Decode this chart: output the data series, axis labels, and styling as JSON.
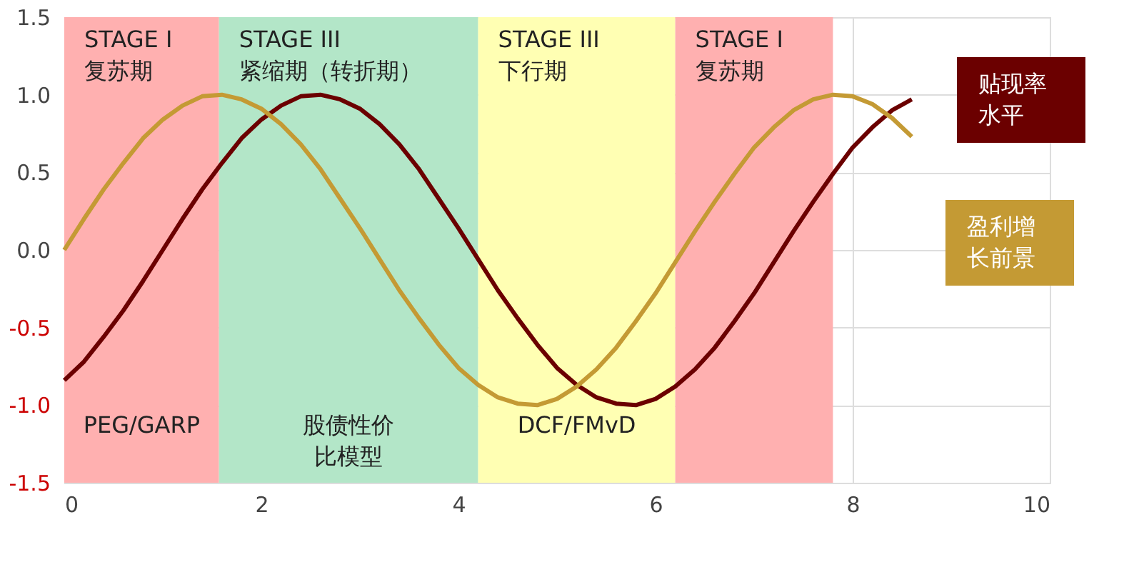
{
  "chart_data": {
    "type": "line",
    "x": [
      0,
      0.2,
      0.4,
      0.6,
      0.8,
      1.0,
      1.2,
      1.4,
      1.6,
      1.8,
      2.0,
      2.2,
      2.4,
      2.6,
      2.8,
      3.0,
      3.2,
      3.4,
      3.6,
      3.8,
      4.0,
      4.2,
      4.4,
      4.6,
      4.8,
      5.0,
      5.2,
      5.4,
      5.6,
      5.8,
      6.0,
      6.2,
      6.4,
      6.6,
      6.8,
      7.0,
      7.2,
      7.4,
      7.6,
      7.8,
      8.0,
      8.2,
      8.4,
      8.6
    ],
    "series": [
      {
        "name": "贴现率水平",
        "color": "#6b0000",
        "values": [
          -0.84,
          -0.72,
          -0.56,
          -0.39,
          -0.2,
          0,
          0.2,
          0.39,
          0.56,
          0.72,
          0.84,
          0.93,
          0.99,
          1.0,
          0.97,
          0.91,
          0.81,
          0.68,
          0.52,
          0.33,
          0.14,
          -0.06,
          -0.26,
          -0.44,
          -0.61,
          -0.76,
          -0.87,
          -0.95,
          -0.99,
          -1.0,
          -0.96,
          -0.88,
          -0.77,
          -0.63,
          -0.46,
          -0.28,
          -0.08,
          0.12,
          0.31,
          0.49,
          0.66,
          0.79,
          0.9,
          0.97
        ]
      },
      {
        "name": "盈利增长前景",
        "color": "#c49a34",
        "values": [
          0,
          0.2,
          0.39,
          0.56,
          0.72,
          0.84,
          0.93,
          0.99,
          1.0,
          0.97,
          0.91,
          0.81,
          0.68,
          0.52,
          0.33,
          0.14,
          -0.06,
          -0.26,
          -0.44,
          -0.61,
          -0.76,
          -0.87,
          -0.95,
          -0.99,
          -1.0,
          -0.96,
          -0.88,
          -0.77,
          -0.63,
          -0.46,
          -0.28,
          -0.08,
          0.12,
          0.31,
          0.49,
          0.66,
          0.79,
          0.9,
          0.97,
          1.0,
          0.99,
          0.94,
          0.85,
          0.73
        ]
      }
    ],
    "xlim": [
      0,
      10
    ],
    "xticks": [
      0,
      2,
      4,
      6,
      8,
      10
    ],
    "ylim": [
      -1.5,
      1.5
    ],
    "yticks": [
      {
        "value": -1.5,
        "label": "-1.5"
      },
      {
        "value": -1,
        "label": "-1.0"
      },
      {
        "value": -0.5,
        "label": "-0.5"
      },
      {
        "value": 0,
        "label": "0.0"
      },
      {
        "value": 0.5,
        "label": "0.5"
      },
      {
        "value": 1,
        "label": "1.0"
      },
      {
        "value": 1.5,
        "label": "1.5"
      }
    ],
    "grid": true,
    "line_style": "solid",
    "marker": "none",
    "bands": [
      {
        "axis": "x",
        "from": 0,
        "to": 1.57,
        "label": "STAGE I\n复苏期",
        "color": "#ffb0b0"
      },
      {
        "axis": "x",
        "from": 1.57,
        "to": 4.2,
        "label": "STAGE III\n紧缩期（转折期）",
        "color": "#b3e6c8"
      },
      {
        "axis": "x",
        "from": 4.2,
        "to": 6.2,
        "label": "STAGE III\n下行期",
        "color": "#ffffb3"
      },
      {
        "axis": "x",
        "from": 6.2,
        "to": 7.8,
        "label": "STAGE I\n复苏期",
        "color": "#ffb0b0"
      }
    ],
    "annotations": [
      "PEG/GARP",
      "股债性价比模型",
      "DCF/FMvD"
    ]
  }
}
